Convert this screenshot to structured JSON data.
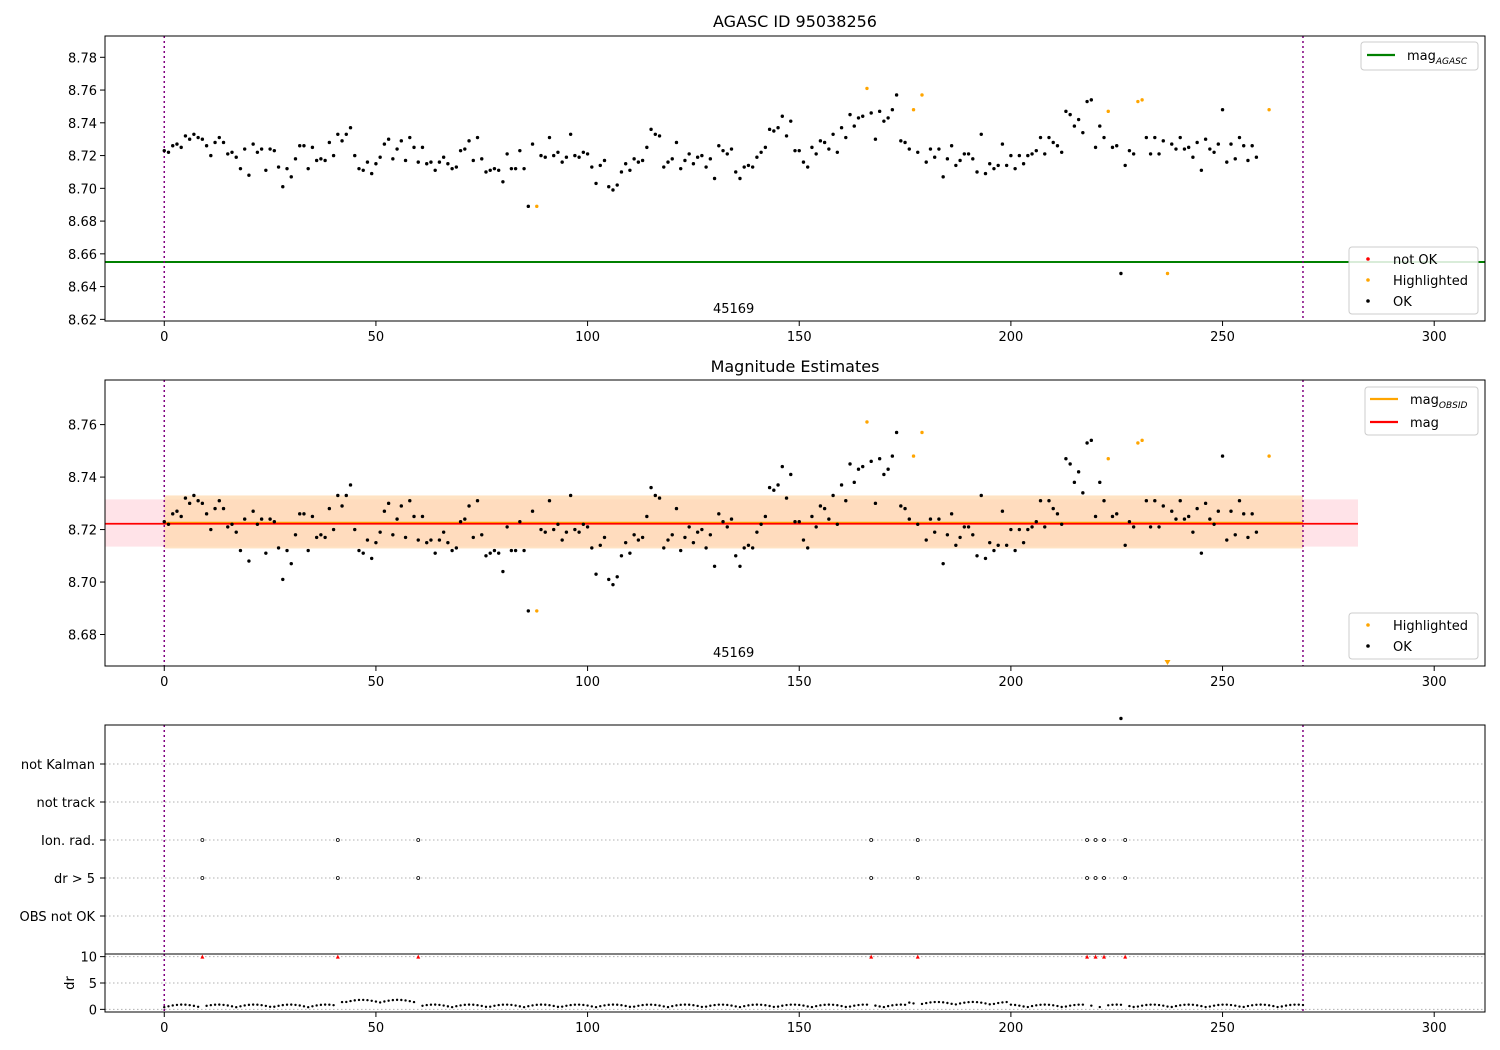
{
  "figure": {
    "panel1_title": "AGASC ID 95038256",
    "panel2_title": "Magnitude Estimates",
    "obsid_label": "45169"
  },
  "colors": {
    "ok": "#000000",
    "highlighted": "#ffa500",
    "not_ok": "#ff0000",
    "mag_agasc": "#008000",
    "mag_obsid": "#ffa500",
    "mag": "#ff0000",
    "band_mag": "#ffc0cb",
    "band_obsid": "#ffdab0",
    "obs_boundary": "#800080",
    "grid": "#b0b0b0"
  },
  "legends": {
    "panel1_top": [
      "mag_AGASC"
    ],
    "panel1_bottom": [
      "not OK",
      "Highlighted",
      "OK"
    ],
    "panel2_top": [
      "mag_OBSID",
      "mag"
    ],
    "panel2_bottom": [
      "Highlighted",
      "OK"
    ]
  },
  "chart_data": [
    {
      "type": "scatter",
      "title": "AGASC ID 95038256",
      "xlim": [
        -14,
        312
      ],
      "ylim": [
        8.619,
        8.793
      ],
      "xticks": [
        0,
        50,
        100,
        150,
        200,
        250,
        300
      ],
      "yticks": [
        8.62,
        8.64,
        8.66,
        8.68,
        8.7,
        8.72,
        8.74,
        8.76,
        8.78
      ],
      "vlines": [
        0,
        269
      ],
      "hline": {
        "name": "mag_AGASC",
        "y": 8.655
      },
      "legend_placement": [
        "top-right",
        "bottom-right"
      ],
      "annotations": [
        {
          "text": "45169",
          "x": 134.5
        }
      ],
      "series": [
        {
          "name": "OK",
          "values": [
            8.723,
            8.722,
            8.726,
            8.727,
            8.725,
            8.732,
            8.73,
            8.733,
            8.731,
            8.73,
            8.726,
            8.72,
            8.728,
            8.731,
            8.728,
            8.721,
            8.722,
            8.719,
            8.712,
            8.724,
            8.708,
            8.727,
            8.722,
            8.724,
            8.711,
            8.724,
            8.723,
            8.713,
            8.701,
            8.712,
            8.707,
            8.718,
            8.726,
            8.726,
            8.712,
            8.725,
            8.717,
            8.718,
            8.717,
            8.728,
            8.72,
            8.733,
            8.729,
            8.733,
            8.737,
            8.72,
            8.712,
            8.711,
            8.716,
            8.709,
            8.715,
            8.719,
            8.727,
            8.73,
            8.718,
            8.724,
            8.729,
            8.717,
            8.731,
            8.725,
            8.716,
            8.725,
            8.715,
            8.716,
            8.711,
            8.716,
            8.719,
            8.715,
            8.712,
            8.713,
            8.723,
            8.724,
            8.729,
            8.717,
            8.731,
            8.718,
            8.71,
            8.711,
            8.712,
            8.711,
            8.704,
            8.721,
            8.712,
            8.712,
            8.723,
            8.712,
            8.689,
            8.727,
            8.727,
            8.72,
            8.719,
            8.731,
            8.72,
            8.722,
            8.716,
            8.719,
            8.733,
            8.72,
            8.719,
            8.722,
            8.721,
            8.713,
            8.703,
            8.714,
            8.717,
            8.701,
            8.699,
            8.702,
            8.71,
            8.715,
            8.711,
            8.718,
            8.716,
            8.717,
            8.725,
            8.736,
            8.733,
            8.732,
            8.713,
            8.716,
            8.718,
            8.728,
            8.712,
            8.717,
            8.721,
            8.715,
            8.719,
            8.72,
            8.713,
            8.718,
            8.706,
            8.726,
            8.723,
            8.721,
            8.724,
            8.71,
            8.706,
            8.713,
            8.714,
            8.713,
            8.719,
            8.722,
            8.725,
            8.736,
            8.735,
            8.737,
            8.744,
            8.732,
            8.741,
            8.723,
            8.723,
            8.716,
            8.713,
            8.725,
            8.721,
            8.729,
            8.728,
            8.724,
            8.733,
            8.722,
            8.737,
            8.731,
            8.745,
            8.738,
            8.743,
            8.744,
            8.745,
            8.746,
            8.73,
            8.747,
            8.741,
            8.743,
            8.748,
            8.757,
            8.729,
            8.728,
            8.724,
            8.728,
            8.722,
            8.719,
            8.716,
            8.724,
            8.719,
            8.724,
            8.707,
            8.718,
            8.726,
            8.714,
            8.717,
            8.721,
            8.721,
            8.718,
            8.71,
            8.733,
            8.709,
            8.715,
            8.712,
            8.714,
            8.727,
            8.714,
            8.72,
            8.712,
            8.72,
            8.715,
            8.72,
            8.721,
            8.723,
            8.731,
            8.721,
            8.731,
            8.728,
            8.726,
            8.722,
            8.747,
            8.745,
            8.738,
            8.742,
            8.734,
            8.753,
            8.754,
            8.725,
            8.738,
            8.731,
            8.724,
            8.725,
            8.726,
            8.648,
            8.714,
            8.723,
            8.721,
            8.719,
            8.716,
            8.731,
            8.721,
            8.731,
            8.721,
            8.729,
            8.716,
            8.727,
            8.724,
            8.731,
            8.724,
            8.725,
            8.719,
            8.728,
            8.711,
            8.73,
            8.724,
            8.722,
            8.727,
            8.748,
            8.716,
            8.727,
            8.718,
            8.731,
            8.726,
            8.717,
            8.726,
            8.719
          ]
        },
        {
          "name": "Highlighted",
          "x": [
            88,
            166,
            177,
            179,
            223,
            230,
            231,
            237,
            261
          ],
          "values": [
            8.689,
            8.761,
            8.748,
            8.757,
            8.747,
            8.753,
            8.754,
            8.648,
            8.748
          ]
        },
        {
          "name": "not OK",
          "x": [],
          "values": []
        }
      ]
    },
    {
      "type": "scatter",
      "title": "Magnitude Estimates",
      "xlim": [
        -14,
        312
      ],
      "ylim": [
        8.668,
        8.777
      ],
      "xticks": [
        0,
        50,
        100,
        150,
        200,
        250,
        300
      ],
      "yticks": [
        8.68,
        8.7,
        8.72,
        8.74,
        8.76
      ],
      "vlines": [
        0,
        269
      ],
      "hlines": [
        {
          "name": "mag_OBSID",
          "y": 8.7225
        },
        {
          "name": "mag",
          "y": 8.7222
        }
      ],
      "bands": [
        {
          "name": "mag",
          "x": [
            -14,
            282
          ],
          "y": [
            8.7135,
            8.7315
          ]
        },
        {
          "name": "mag_OBSID",
          "x": [
            0,
            269
          ],
          "y": [
            8.7128,
            8.733
          ]
        }
      ],
      "legend_placement": [
        "top-right",
        "bottom-right"
      ],
      "annotations": [
        {
          "text": "45169",
          "x": 134.5
        }
      ],
      "series": [
        {
          "name": "Highlighted",
          "x": [
            88,
            166,
            177,
            179,
            223,
            230,
            231,
            261
          ],
          "values": [
            8.689,
            8.761,
            8.748,
            8.757,
            8.747,
            8.753,
            8.754,
            8.748
          ]
        },
        {
          "name": "OK",
          "values": "same as panel 1"
        }
      ]
    },
    {
      "type": "scatter",
      "categories": [
        "not Kalman",
        "not track",
        "Ion. rad.",
        "dr > 5",
        "OBS not OK"
      ],
      "xlim": [
        -14,
        312
      ],
      "xticks": [
        0,
        50,
        100,
        150,
        200,
        250,
        300
      ],
      "vlines": [
        0,
        269
      ],
      "flags": {
        "Ion. rad.": [
          9,
          41,
          60,
          167,
          178,
          218,
          220,
          222,
          227
        ],
        "dr > 5": [
          9,
          41,
          60,
          167,
          178,
          218,
          220,
          222,
          227
        ]
      }
    },
    {
      "type": "scatter",
      "ylabel": "dr",
      "xlim": [
        -14,
        312
      ],
      "ylim": [
        -0.5,
        10.5
      ],
      "xticks": [
        0,
        50,
        100,
        150,
        200,
        250,
        300
      ],
      "yticks": [
        0,
        5,
        10
      ],
      "vlines": [
        0,
        269
      ],
      "clipped_at_10": [
        9,
        41,
        60,
        167,
        178,
        218,
        220,
        222,
        227
      ]
    }
  ]
}
